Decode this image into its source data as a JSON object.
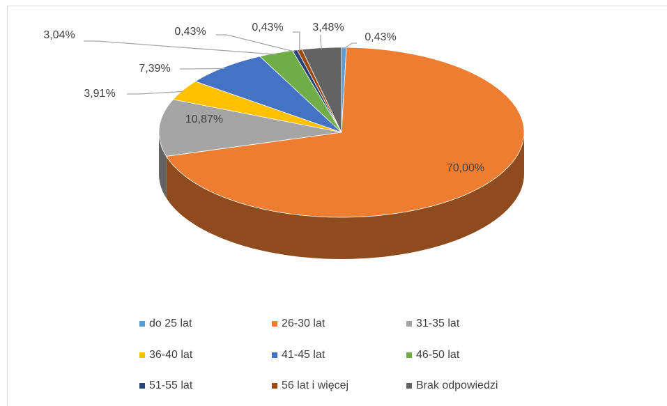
{
  "chart_data": {
    "type": "pie3d",
    "categories": [
      "do 25 lat",
      "26-30 lat",
      "31-35 lat",
      "36-40 lat",
      "41-45 lat",
      "46-50 lat",
      "51-55 lat",
      "56 lat i więcej",
      "Brak odpowiedzi"
    ],
    "values": [
      0.43,
      70.0,
      10.87,
      3.91,
      7.39,
      3.04,
      0.43,
      0.43,
      3.48
    ],
    "value_labels": [
      "0,43%",
      "70,00%",
      "10,87%",
      "3,91%",
      "7,39%",
      "3,04%",
      "0,43%",
      "0,43%",
      "3,48%"
    ],
    "colors": [
      "#5b9bd5",
      "#ed7d31",
      "#a5a5a5",
      "#ffc000",
      "#4472c4",
      "#70ad47",
      "#264478",
      "#9e480e",
      "#636363"
    ],
    "legend": "bottom"
  }
}
